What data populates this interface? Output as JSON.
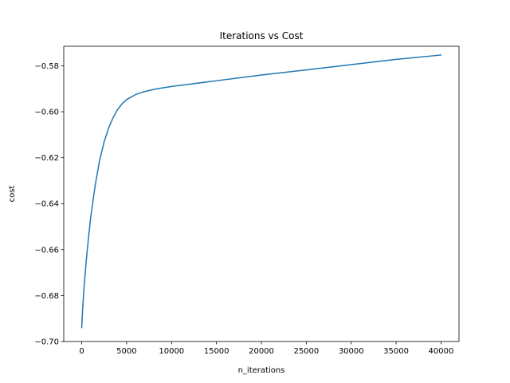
{
  "chart_data": {
    "type": "line",
    "title": "Iterations vs Cost",
    "xlabel": "n_iterations",
    "ylabel": "cost",
    "xlim": [
      -2000,
      42000
    ],
    "ylim": [
      -0.7,
      -0.5715
    ],
    "x_ticks": [
      0,
      5000,
      10000,
      15000,
      20000,
      25000,
      30000,
      35000,
      40000
    ],
    "x_tick_labels": [
      "0",
      "5000",
      "10000",
      "15000",
      "20000",
      "25000",
      "30000",
      "35000",
      "40000"
    ],
    "y_ticks": [
      -0.7,
      -0.68,
      -0.66,
      -0.64,
      -0.62,
      -0.6,
      -0.58
    ],
    "y_tick_labels": [
      "−0.70",
      "−0.68",
      "−0.66",
      "−0.64",
      "−0.62",
      "−0.60",
      "−0.58"
    ],
    "grid": false,
    "series": [
      {
        "color": "#1f77b4",
        "x": [
          0,
          100,
          250,
          500,
          750,
          1000,
          1500,
          2000,
          2500,
          3000,
          3500,
          4000,
          4500,
          5000,
          6000,
          7000,
          8000,
          9000,
          10000,
          12000,
          15000,
          20000,
          25000,
          30000,
          35000,
          40000
        ],
        "y": [
          -0.694,
          -0.686,
          -0.677,
          -0.665,
          -0.655,
          -0.646,
          -0.632,
          -0.621,
          -0.613,
          -0.607,
          -0.6025,
          -0.599,
          -0.5965,
          -0.5947,
          -0.5925,
          -0.5912,
          -0.5903,
          -0.5896,
          -0.589,
          -0.588,
          -0.5865,
          -0.584,
          -0.5818,
          -0.5795,
          -0.5772,
          -0.5753
        ]
      }
    ]
  }
}
